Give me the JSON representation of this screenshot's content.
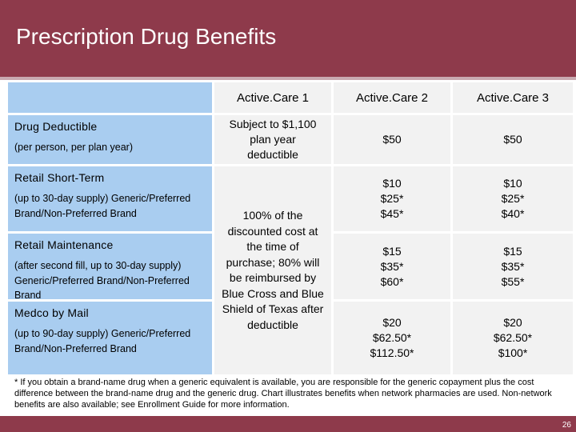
{
  "slide": {
    "title": "Prescription Drug Benefits",
    "page_number": "26"
  },
  "table": {
    "columns": [
      "Active.Care 1",
      "Active.Care 2",
      "Active.Care 3"
    ],
    "rows": [
      {
        "label": "Drug Deductible",
        "sublabel": "(per person, per plan year)",
        "ac2": "$50",
        "ac3": "$50"
      },
      {
        "label": "Retail Short-Term",
        "sublabel": "(up to 30-day supply) Generic/Preferred Brand/Non-Preferred Brand",
        "ac2": [
          "$10",
          "$25*",
          "$45*"
        ],
        "ac3": [
          "$10",
          "$25*",
          "$40*"
        ]
      },
      {
        "label": "Retail Maintenance",
        "sublabel": "(after second fill, up to 30-day supply) Generic/Preferred Brand/Non-Preferred Brand",
        "ac2": [
          "$15",
          "$35*",
          "$60*"
        ],
        "ac3": [
          "$15",
          "$35*",
          "$55*"
        ]
      },
      {
        "label": "Medco by Mail",
        "sublabel": "(up to 90-day supply) Generic/Preferred Brand/Non-Preferred Brand",
        "ac2": [
          "$20",
          "$62.50*",
          "$112.50*"
        ],
        "ac3": [
          "$20",
          "$62.50*",
          "$100*"
        ]
      }
    ],
    "ac1_deductible": "Subject to $1,100 plan year deductible",
    "ac1_merged": "100% of the discounted cost at the time of purchase; 80% will be reimbursed by Blue Cross and Blue Shield of Texas after deductible"
  },
  "footnote": "* If you obtain a brand-name drug when a generic equivalent is available, you are responsible for the generic copayment plus the cost difference between the brand-name drug and the generic drug.  Chart illustrates benefits when network pharmacies are used.  Non-network benefits are also available; see Enrollment Guide for more information.",
  "colors": {
    "header_bg": "#8e3a4b",
    "label_col": "#a9cdf0",
    "value_cells": "#f2f2f2"
  }
}
